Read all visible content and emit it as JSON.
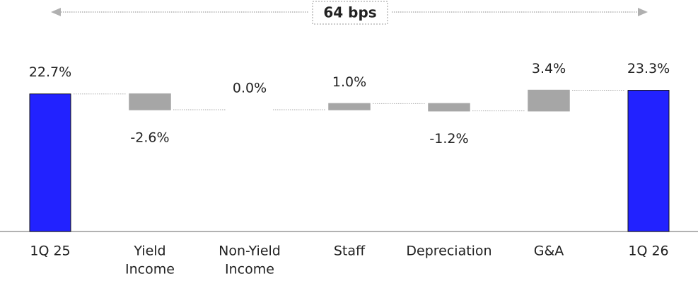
{
  "chart_data": {
    "type": "waterfall",
    "annotation": "64 bps",
    "categories": [
      [
        "1Q 25"
      ],
      [
        "Yield",
        "Income"
      ],
      [
        "Non-Yield",
        "Income"
      ],
      [
        "Staff"
      ],
      [
        "Depreciation"
      ],
      [
        "G&A"
      ],
      [
        "1Q 26"
      ]
    ],
    "values": [
      22.7,
      -2.6,
      0.0,
      1.0,
      -1.2,
      3.4,
      23.3
    ],
    "value_labels": [
      "22.7%",
      "-2.6%",
      "0.0%",
      "1.0%",
      "-1.2%",
      "3.4%",
      "23.3%"
    ],
    "totals": [
      true,
      false,
      false,
      false,
      false,
      false,
      true
    ],
    "total_color": "#2222ff",
    "delta_color": "#a6a6a6",
    "ylim": [
      0,
      25
    ]
  }
}
